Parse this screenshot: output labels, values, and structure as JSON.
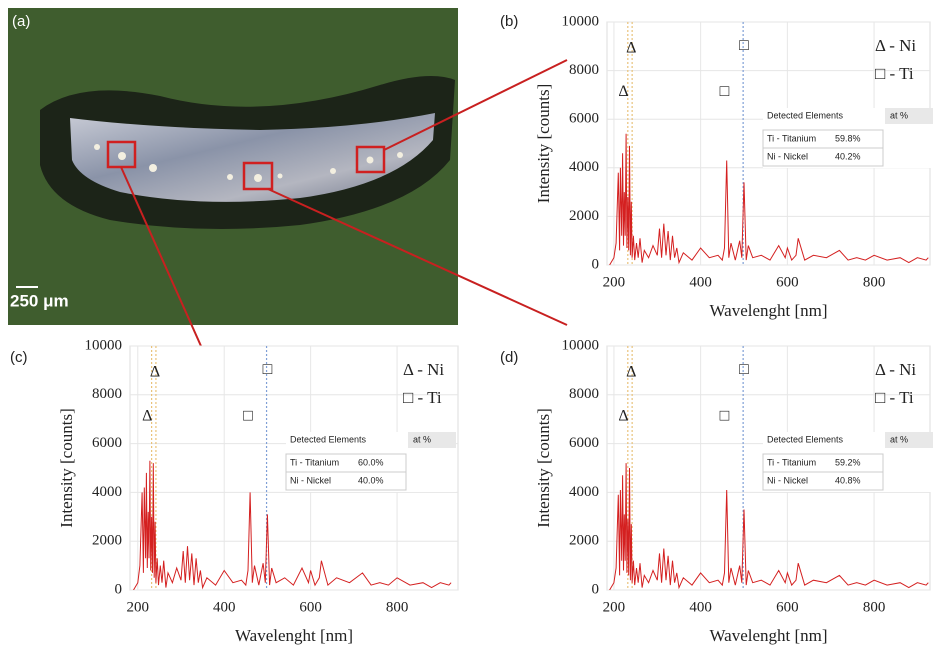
{
  "panel_a": {
    "label": "(a)",
    "scale_bar": "250 μm"
  },
  "chart_data": [
    {
      "type": "line",
      "panel": "(b)",
      "x_label": "Wavelenght [nm]",
      "y_label": "Intensity [counts]",
      "xlim": [
        184,
        929
      ],
      "ylim": [
        0,
        10000
      ],
      "xticks": [
        200,
        400,
        600,
        800
      ],
      "yticks": [
        0,
        2000,
        4000,
        6000,
        8000,
        10000
      ],
      "grid": true,
      "legend": [
        "Δ - Ni",
        "□ - Ti"
      ],
      "markers": [
        {
          "label": "Δ",
          "x": 240,
          "y": 8900
        },
        {
          "label": "Δ",
          "x": 222,
          "y": 7100
        },
        {
          "label": "□",
          "x": 500,
          "y": 9000
        },
        {
          "label": "□",
          "x": 455,
          "y": 7100
        }
      ],
      "vlines": [
        {
          "x": 232,
          "color": "#e9c27a"
        },
        {
          "x": 242,
          "color": "#e9c27a"
        },
        {
          "x": 498,
          "color": "#7f9fd6"
        }
      ],
      "table": {
        "header": "Detected Elements",
        "unit": "at %",
        "rows": [
          [
            "Ti - Titanium",
            "59.8%"
          ],
          [
            "Ni - Nickel",
            "40.2%"
          ]
        ]
      },
      "series": [
        {
          "color": "#d42020",
          "x": [
            190,
            200,
            205,
            210,
            213,
            215,
            218,
            220,
            222,
            224,
            226,
            228,
            230,
            232,
            234,
            236,
            238,
            240,
            242,
            245,
            248,
            252,
            256,
            260,
            265,
            270,
            280,
            290,
            300,
            305,
            310,
            315,
            320,
            325,
            330,
            335,
            340,
            345,
            350,
            360,
            380,
            400,
            420,
            440,
            450,
            455,
            460,
            465,
            470,
            480,
            490,
            495,
            500,
            505,
            510,
            520,
            540,
            560,
            580,
            595,
            600,
            610,
            620,
            625,
            640,
            660,
            690,
            720,
            740,
            760,
            780,
            800,
            830,
            860,
            880,
            900,
            920,
            925
          ],
          "values": [
            0,
            300,
            900,
            3800,
            600,
            4000,
            1200,
            4600,
            800,
            3000,
            1200,
            5400,
            700,
            2800,
            600,
            4900,
            400,
            2600,
            300,
            1200,
            200,
            900,
            300,
            1100,
            100,
            600,
            300,
            800,
            400,
            1500,
            300,
            1700,
            400,
            1400,
            200,
            1200,
            300,
            700,
            100,
            500,
            200,
            700,
            300,
            400,
            200,
            700,
            4300,
            300,
            900,
            200,
            1000,
            300,
            3400,
            200,
            800,
            300,
            400,
            200,
            800,
            300,
            700,
            200,
            400,
            1100,
            200,
            400,
            300,
            600,
            200,
            300,
            200,
            400,
            200,
            300,
            100,
            300,
            200,
            300
          ]
        }
      ]
    },
    {
      "type": "line",
      "panel": "(c)",
      "x_label": "Wavelenght [nm]",
      "y_label": "Intensity [counts]",
      "xlim": [
        182,
        941
      ],
      "ylim": [
        0,
        10000
      ],
      "xticks": [
        200,
        400,
        600,
        800
      ],
      "yticks": [
        0,
        2000,
        4000,
        6000,
        8000,
        10000
      ],
      "grid": true,
      "legend": [
        "Δ - Ni",
        "□ - Ti"
      ],
      "markers": [
        {
          "label": "Δ",
          "x": 240,
          "y": 8900
        },
        {
          "label": "Δ",
          "x": 222,
          "y": 7100
        },
        {
          "label": "□",
          "x": 500,
          "y": 9000
        },
        {
          "label": "□",
          "x": 455,
          "y": 7100
        }
      ],
      "vlines": [
        {
          "x": 232,
          "color": "#e9c27a"
        },
        {
          "x": 242,
          "color": "#e9c27a"
        },
        {
          "x": 498,
          "color": "#7f9fd6"
        }
      ],
      "table": {
        "header": "Detected Elements",
        "unit": "at %",
        "rows": [
          [
            "Ti - Titanium",
            "60.0%"
          ],
          [
            "Ni - Nickel",
            "40.0%"
          ]
        ]
      },
      "series": [
        {
          "color": "#d42020",
          "x": [
            190,
            200,
            205,
            210,
            213,
            215,
            218,
            220,
            222,
            224,
            226,
            228,
            230,
            232,
            234,
            236,
            238,
            240,
            242,
            245,
            248,
            252,
            256,
            260,
            265,
            270,
            280,
            290,
            300,
            305,
            310,
            315,
            320,
            325,
            330,
            335,
            340,
            345,
            350,
            360,
            380,
            400,
            420,
            440,
            450,
            455,
            460,
            465,
            470,
            480,
            490,
            495,
            500,
            505,
            510,
            520,
            540,
            560,
            580,
            595,
            600,
            610,
            620,
            625,
            640,
            660,
            690,
            720,
            740,
            760,
            780,
            800,
            830,
            860,
            880,
            900,
            920,
            925
          ],
          "values": [
            0,
            300,
            1000,
            4000,
            700,
            4200,
            1300,
            4800,
            900,
            3200,
            1300,
            5300,
            800,
            3000,
            700,
            5200,
            500,
            2800,
            300,
            1300,
            200,
            1000,
            300,
            1200,
            100,
            700,
            300,
            900,
            400,
            1600,
            300,
            1800,
            400,
            1500,
            200,
            1300,
            300,
            800,
            100,
            500,
            200,
            800,
            300,
            400,
            200,
            800,
            4000,
            300,
            1000,
            200,
            1100,
            300,
            3100,
            200,
            900,
            300,
            500,
            200,
            900,
            300,
            800,
            200,
            500,
            1200,
            200,
            500,
            300,
            700,
            200,
            300,
            200,
            500,
            200,
            300,
            100,
            300,
            200,
            300
          ]
        }
      ]
    },
    {
      "type": "line",
      "panel": "(d)",
      "x_label": "Wavelenght [nm]",
      "y_label": "Intensity [counts]",
      "xlim": [
        184,
        929
      ],
      "ylim": [
        0,
        10000
      ],
      "xticks": [
        200,
        400,
        600,
        800
      ],
      "yticks": [
        0,
        2000,
        4000,
        6000,
        8000,
        10000
      ],
      "grid": true,
      "legend": [
        "Δ - Ni",
        "□ - Ti"
      ],
      "markers": [
        {
          "label": "Δ",
          "x": 240,
          "y": 8900
        },
        {
          "label": "Δ",
          "x": 222,
          "y": 7100
        },
        {
          "label": "□",
          "x": 500,
          "y": 9000
        },
        {
          "label": "□",
          "x": 455,
          "y": 7100
        }
      ],
      "vlines": [
        {
          "x": 232,
          "color": "#e9c27a"
        },
        {
          "x": 242,
          "color": "#e9c27a"
        },
        {
          "x": 498,
          "color": "#7f9fd6"
        }
      ],
      "table": {
        "header": "Detected Elements",
        "unit": "at %",
        "rows": [
          [
            "Ti - Titanium",
            "59.2%"
          ],
          [
            "Ni - Nickel",
            "40.8%"
          ]
        ]
      },
      "series": [
        {
          "color": "#d42020",
          "x": [
            190,
            200,
            205,
            210,
            213,
            215,
            218,
            220,
            222,
            224,
            226,
            228,
            230,
            232,
            234,
            236,
            238,
            240,
            242,
            245,
            248,
            252,
            256,
            260,
            265,
            270,
            280,
            290,
            300,
            305,
            310,
            315,
            320,
            325,
            330,
            335,
            340,
            345,
            350,
            360,
            380,
            400,
            420,
            440,
            450,
            455,
            460,
            465,
            470,
            480,
            490,
            495,
            500,
            505,
            510,
            520,
            540,
            560,
            580,
            595,
            600,
            610,
            620,
            625,
            640,
            660,
            690,
            720,
            740,
            760,
            780,
            800,
            830,
            860,
            880,
            900,
            920,
            925
          ],
          "values": [
            0,
            300,
            900,
            3900,
            600,
            4100,
            1200,
            4700,
            800,
            3100,
            1200,
            5200,
            700,
            2900,
            600,
            5000,
            400,
            2700,
            300,
            1200,
            200,
            900,
            300,
            1100,
            100,
            600,
            300,
            800,
            400,
            1500,
            300,
            1700,
            400,
            1400,
            200,
            1200,
            300,
            700,
            100,
            500,
            200,
            700,
            300,
            400,
            200,
            700,
            4100,
            300,
            900,
            200,
            1000,
            300,
            3300,
            200,
            800,
            300,
            400,
            200,
            800,
            300,
            700,
            200,
            400,
            1100,
            200,
            400,
            300,
            600,
            200,
            300,
            200,
            400,
            200,
            300,
            100,
            300,
            200,
            300
          ]
        }
      ]
    }
  ]
}
